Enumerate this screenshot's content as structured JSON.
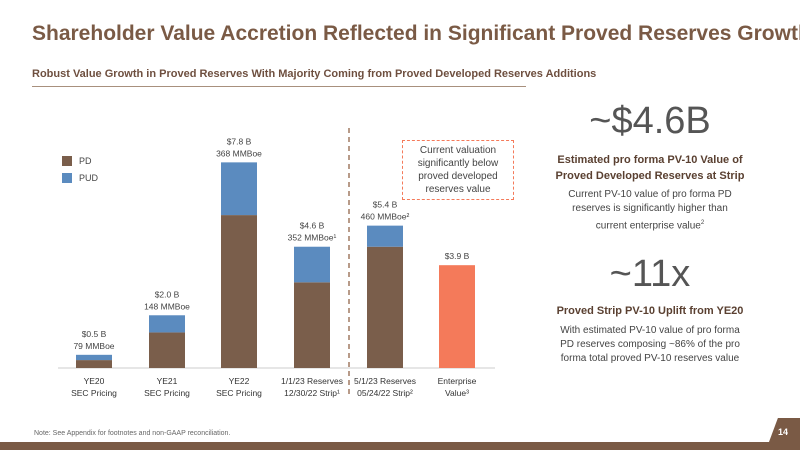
{
  "title": "Shareholder Value Accretion Reflected in Significant Proved Reserves Growth",
  "subtitle": "Robust Value Growth in Proved Reserves With Majority Coming from Proved Developed Reserves Additions",
  "colors": {
    "pd": "#7a5e4b",
    "pud": "#5b8bbf",
    "ev": "#f47a5a",
    "brand": "#7a5a45",
    "divider": "#a07a62"
  },
  "chart_data": {
    "type": "bar",
    "stacked": true,
    "categories": [
      [
        "YE20",
        "SEC Pricing"
      ],
      [
        "YE21",
        "SEC Pricing"
      ],
      [
        "YE22",
        "SEC Pricing"
      ],
      [
        "1/1/23 Reserves",
        "12/30/22 Strip¹"
      ],
      [
        "5/1/23 Reserves",
        "05/24/22 Strip²"
      ],
      [
        "Enterprise",
        "Value³"
      ]
    ],
    "series": [
      {
        "name": "PD",
        "values": [
          0.3,
          1.35,
          5.8,
          3.25,
          4.6,
          null
        ]
      },
      {
        "name": "PUD",
        "values": [
          0.2,
          0.65,
          2.0,
          1.35,
          0.8,
          null
        ]
      },
      {
        "name": "",
        "values": [
          null,
          null,
          null,
          null,
          null,
          3.9
        ]
      }
    ],
    "value_labels": [
      [
        "$0.5 B",
        "79 MMBoe"
      ],
      [
        "$2.0 B",
        "148 MMBoe"
      ],
      [
        "$7.8 B",
        "368 MMBoe"
      ],
      [
        "$4.6 B",
        "352 MMBoe¹"
      ],
      [
        "$5.4 B",
        "460 MMBoe²"
      ],
      [
        "$3.9 B"
      ]
    ],
    "ylim": [
      0,
      8.8
    ],
    "legend": [
      "PD",
      "PUD"
    ]
  },
  "callout": [
    "Current valuation",
    "significantly below",
    "proved developed",
    "reserves value"
  ],
  "stat1": {
    "value": "~$4.6B",
    "heading": [
      "Estimated pro forma PV-10 Value of",
      "Proved Developed Reserves at Strip"
    ],
    "body_lines": [
      "Current PV-10 value of pro forma PD",
      "reserves is significantly higher than",
      "current enterprise value"
    ],
    "body_sup": "2"
  },
  "stat2": {
    "value": "~11x",
    "heading": "Proved Strip PV-10 Uplift from YE20",
    "body_lines": [
      "With estimated PV-10 value of pro forma",
      "PD reserves composing ~86% of the pro",
      "forma total proved PV-10 reserves value"
    ]
  },
  "footnote": "Note: See Appendix for footnotes and non-GAAP reconciliation.",
  "page_number": "14"
}
